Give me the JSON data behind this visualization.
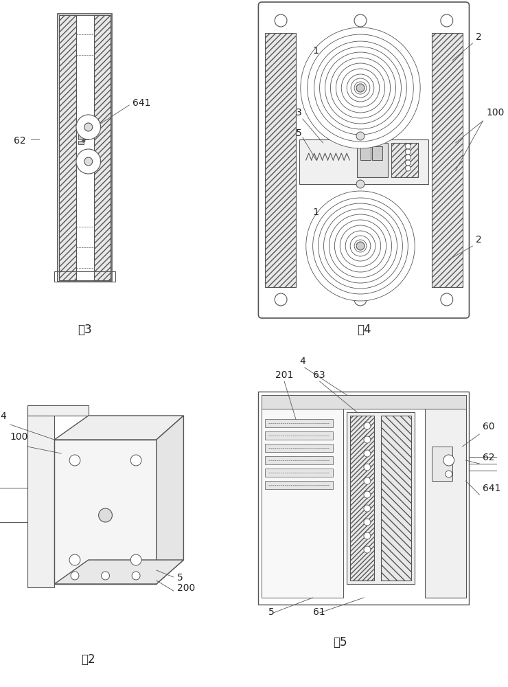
{
  "bg_color": "#ffffff",
  "line_color": "#555555",
  "hatch_color": "#888888",
  "label_color": "#222222",
  "fig3_label": "图3",
  "fig4_label": "图4",
  "fig2_label": "图2",
  "fig5_label": "图5",
  "font_size_label": 11,
  "font_size_number": 10
}
